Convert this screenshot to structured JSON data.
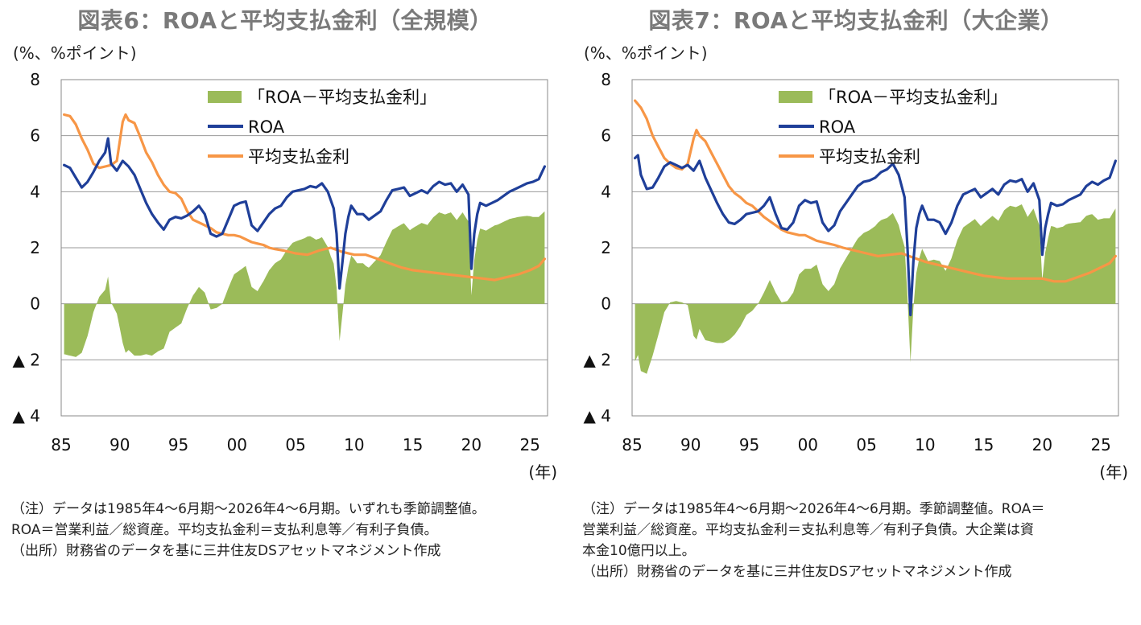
{
  "chart_data": [
    {
      "type": "line",
      "title": "図表6：ROAと平均支払金利（全規模）",
      "unit_label": "(%、%ポイント)",
      "x_unit": "(年)",
      "ylim": [
        -4,
        8
      ],
      "y_ticks": [
        8,
        6,
        4,
        2,
        0,
        -2,
        -4
      ],
      "y_tick_labels": [
        "8",
        "6",
        "4",
        "2",
        "0",
        "▲ 2",
        "▲ 4"
      ],
      "xlim": [
        1985,
        2026.5
      ],
      "x_ticks": [
        1985,
        1990,
        1995,
        2000,
        2005,
        2010,
        2015,
        2020,
        2025
      ],
      "x_tick_labels": [
        "85",
        "90",
        "95",
        "00",
        "05",
        "10",
        "15",
        "20",
        "25"
      ],
      "grid": true,
      "legend": "top-right",
      "colors": {
        "diff": "#9bbb59",
        "roa": "#1f3f99",
        "rate": "#f79646"
      },
      "series": [
        {
          "name": "「ROA－平均支払金利」",
          "kind": "area",
          "derived": "roa-rate"
        },
        {
          "name": "ROA",
          "kind": "line",
          "x": [
            1985.25,
            1985.75,
            1986.25,
            1986.75,
            1987.25,
            1987.75,
            1988.25,
            1988.75,
            1989.0,
            1989.25,
            1989.75,
            1990.25,
            1990.75,
            1991.25,
            1991.75,
            1992.25,
            1992.75,
            1993.25,
            1993.75,
            1994.25,
            1994.75,
            1995.25,
            1995.75,
            1996.25,
            1996.75,
            1997.25,
            1997.75,
            1998.25,
            1998.75,
            1999.25,
            1999.75,
            2000.25,
            2000.75,
            2001.25,
            2001.75,
            2002.25,
            2002.75,
            2003.25,
            2003.75,
            2004.25,
            2004.75,
            2005.25,
            2005.75,
            2006.25,
            2006.75,
            2007.25,
            2007.75,
            2008.25,
            2008.5,
            2008.75,
            2009.0,
            2009.25,
            2009.5,
            2009.75,
            2010.25,
            2010.75,
            2011.25,
            2011.75,
            2012.25,
            2012.75,
            2013.25,
            2013.75,
            2014.25,
            2014.75,
            2015.25,
            2015.75,
            2016.25,
            2016.75,
            2017.25,
            2017.75,
            2018.25,
            2018.75,
            2019.25,
            2019.75,
            2020.0,
            2020.25,
            2020.5,
            2020.75,
            2021.25,
            2021.75,
            2022.25,
            2022.75,
            2023.25,
            2023.75,
            2024.25,
            2024.75,
            2025.25,
            2025.75,
            2026.25
          ],
          "y": [
            4.95,
            4.85,
            4.5,
            4.15,
            4.35,
            4.7,
            5.1,
            5.4,
            5.9,
            5.0,
            4.75,
            5.1,
            4.9,
            4.6,
            4.1,
            3.6,
            3.2,
            2.9,
            2.65,
            3.0,
            3.1,
            3.05,
            3.15,
            3.3,
            3.5,
            3.2,
            2.5,
            2.4,
            2.5,
            3.0,
            3.5,
            3.6,
            3.65,
            2.8,
            2.6,
            2.9,
            3.2,
            3.4,
            3.5,
            3.8,
            4.0,
            4.05,
            4.1,
            4.2,
            4.15,
            4.3,
            4.0,
            3.4,
            2.5,
            0.55,
            1.5,
            2.5,
            3.1,
            3.5,
            3.2,
            3.2,
            3.0,
            3.15,
            3.3,
            3.7,
            4.05,
            4.1,
            4.15,
            3.85,
            3.95,
            4.05,
            3.95,
            4.2,
            4.35,
            4.25,
            4.3,
            4.0,
            4.25,
            3.9,
            1.25,
            2.5,
            3.2,
            3.6,
            3.5,
            3.6,
            3.7,
            3.85,
            4.0,
            4.1,
            4.2,
            4.3,
            4.35,
            4.45,
            4.9
          ]
        },
        {
          "name": "平均支払金利",
          "kind": "line",
          "x": [
            1985.25,
            1985.75,
            1986.25,
            1986.75,
            1987.25,
            1987.75,
            1988.25,
            1988.75,
            1989.25,
            1989.75,
            1990.25,
            1990.5,
            1990.75,
            1991.25,
            1991.75,
            1992.25,
            1992.75,
            1993.25,
            1993.75,
            1994.25,
            1994.75,
            1995.25,
            1995.75,
            1996.25,
            1996.75,
            1997.25,
            1997.75,
            1998.25,
            1998.75,
            1999.25,
            1999.75,
            2000.25,
            2000.75,
            2001.25,
            2001.75,
            2002.25,
            2002.75,
            2003.25,
            2004.0,
            2005.0,
            2006.0,
            2007.0,
            2008.0,
            2009.0,
            2010.0,
            2011.0,
            2012.0,
            2013.0,
            2014.0,
            2015.0,
            2016.0,
            2017.0,
            2018.0,
            2019.0,
            2020.0,
            2021.0,
            2022.0,
            2023.0,
            2024.0,
            2025.0,
            2025.75,
            2026.25
          ],
          "y": [
            6.75,
            6.7,
            6.4,
            5.9,
            5.5,
            5.0,
            4.85,
            4.9,
            4.95,
            5.1,
            6.5,
            6.75,
            6.55,
            6.45,
            5.95,
            5.4,
            5.05,
            4.6,
            4.25,
            4.0,
            3.95,
            3.75,
            3.3,
            3.0,
            2.9,
            2.8,
            2.7,
            2.55,
            2.5,
            2.45,
            2.45,
            2.4,
            2.3,
            2.2,
            2.15,
            2.1,
            2.0,
            1.95,
            1.9,
            1.8,
            1.75,
            1.9,
            2.0,
            1.85,
            1.75,
            1.75,
            1.6,
            1.45,
            1.3,
            1.2,
            1.15,
            1.1,
            1.05,
            1.0,
            0.95,
            0.9,
            0.85,
            0.95,
            1.05,
            1.2,
            1.35,
            1.6
          ]
        }
      ]
    },
    {
      "type": "line",
      "title": "図表7：ROAと平均支払金利（大企業）",
      "unit_label": "(%、%ポイント)",
      "x_unit": "(年)",
      "ylim": [
        -4,
        8
      ],
      "y_ticks": [
        8,
        6,
        4,
        2,
        0,
        -2,
        -4
      ],
      "y_tick_labels": [
        "8",
        "6",
        "4",
        "2",
        "0",
        "▲ 2",
        "▲ 4"
      ],
      "xlim": [
        1985,
        2026.5
      ],
      "x_ticks": [
        1985,
        1990,
        1995,
        2000,
        2005,
        2010,
        2015,
        2020,
        2025
      ],
      "x_tick_labels": [
        "85",
        "90",
        "95",
        "00",
        "05",
        "10",
        "15",
        "20",
        "25"
      ],
      "grid": true,
      "legend": "top-right",
      "colors": {
        "diff": "#9bbb59",
        "roa": "#1f3f99",
        "rate": "#f79646"
      },
      "series": [
        {
          "name": "「ROA－平均支払金利」",
          "kind": "area",
          "derived": "roa-rate"
        },
        {
          "name": "ROA",
          "kind": "line",
          "x": [
            1985.25,
            1985.5,
            1985.75,
            1986.25,
            1986.75,
            1987.25,
            1987.75,
            1988.25,
            1988.75,
            1989.25,
            1989.75,
            1990.25,
            1990.75,
            1991.25,
            1991.75,
            1992.25,
            1992.75,
            1993.25,
            1993.75,
            1994.25,
            1994.75,
            1995.25,
            1995.75,
            1996.25,
            1996.75,
            1997.25,
            1997.75,
            1998.25,
            1998.75,
            1999.25,
            1999.75,
            2000.25,
            2000.75,
            2001.25,
            2001.75,
            2002.25,
            2002.75,
            2003.25,
            2003.75,
            2004.25,
            2004.75,
            2005.25,
            2005.75,
            2006.25,
            2006.75,
            2007.25,
            2007.75,
            2008.25,
            2008.5,
            2008.75,
            2009.0,
            2009.25,
            2009.5,
            2009.75,
            2010.25,
            2010.75,
            2011.25,
            2011.75,
            2012.25,
            2012.75,
            2013.25,
            2013.75,
            2014.25,
            2014.75,
            2015.25,
            2015.75,
            2016.25,
            2016.75,
            2017.25,
            2017.75,
            2018.25,
            2018.75,
            2019.25,
            2019.75,
            2020.0,
            2020.25,
            2020.5,
            2020.75,
            2021.25,
            2021.75,
            2022.25,
            2022.75,
            2023.25,
            2023.75,
            2024.25,
            2024.75,
            2025.25,
            2025.75,
            2026.25
          ],
          "y": [
            5.2,
            5.3,
            4.6,
            4.1,
            4.15,
            4.5,
            4.9,
            5.05,
            4.95,
            4.85,
            4.95,
            4.75,
            5.1,
            4.5,
            4.05,
            3.6,
            3.2,
            2.9,
            2.85,
            3.0,
            3.2,
            3.25,
            3.3,
            3.5,
            3.8,
            3.2,
            2.7,
            2.65,
            2.9,
            3.5,
            3.7,
            3.6,
            3.65,
            2.9,
            2.6,
            2.8,
            3.3,
            3.6,
            3.9,
            4.2,
            4.35,
            4.4,
            4.5,
            4.7,
            4.8,
            5.0,
            4.6,
            3.8,
            2.0,
            -0.4,
            1.5,
            2.7,
            3.2,
            3.5,
            3.0,
            3.0,
            2.9,
            2.5,
            2.9,
            3.5,
            3.9,
            4.0,
            4.1,
            3.8,
            3.95,
            4.1,
            3.9,
            4.25,
            4.4,
            4.35,
            4.45,
            4.0,
            4.3,
            3.7,
            1.75,
            2.7,
            3.2,
            3.6,
            3.5,
            3.55,
            3.7,
            3.8,
            3.9,
            4.2,
            4.35,
            4.25,
            4.4,
            4.5,
            5.1
          ]
        },
        {
          "name": "平均支払金利",
          "kind": "line",
          "x": [
            1985.25,
            1985.75,
            1986.25,
            1986.75,
            1987.25,
            1987.75,
            1988.25,
            1988.75,
            1989.25,
            1989.75,
            1990.25,
            1990.5,
            1990.75,
            1991.25,
            1991.75,
            1992.25,
            1992.75,
            1993.25,
            1993.75,
            1994.25,
            1994.75,
            1995.25,
            1995.75,
            1996.25,
            1996.75,
            1997.25,
            1997.75,
            1998.25,
            1998.75,
            1999.25,
            1999.75,
            2000.25,
            2000.75,
            2001.25,
            2001.75,
            2002.25,
            2003.0,
            2004.0,
            2005.0,
            2006.0,
            2007.0,
            2008.0,
            2009.0,
            2010.0,
            2011.0,
            2012.0,
            2013.0,
            2014.0,
            2015.0,
            2016.0,
            2017.0,
            2018.0,
            2019.0,
            2020.0,
            2021.0,
            2022.0,
            2023.0,
            2024.0,
            2025.0,
            2025.75,
            2026.25
          ],
          "y": [
            7.25,
            7.0,
            6.6,
            6.0,
            5.6,
            5.2,
            5.0,
            4.85,
            4.8,
            5.0,
            5.9,
            6.2,
            6.0,
            5.8,
            5.4,
            5.0,
            4.6,
            4.2,
            3.95,
            3.8,
            3.6,
            3.5,
            3.3,
            3.1,
            2.95,
            2.8,
            2.65,
            2.55,
            2.5,
            2.45,
            2.45,
            2.35,
            2.25,
            2.2,
            2.15,
            2.1,
            2.0,
            1.9,
            1.8,
            1.7,
            1.75,
            1.8,
            1.65,
            1.5,
            1.4,
            1.3,
            1.2,
            1.1,
            1.0,
            0.95,
            0.9,
            0.9,
            0.9,
            0.9,
            0.8,
            0.8,
            0.95,
            1.1,
            1.3,
            1.45,
            1.7
          ]
        }
      ]
    }
  ],
  "notes_left": [
    "（注）データは1985年4～6月期～2026年4～6月期。いずれも季節調整値。",
    "ROA＝営業利益／総資産。平均支払金利＝支払利息等／有利子負債。",
    "（出所）財務省のデータを基に三井住友DSアセットマネジメント作成"
  ],
  "notes_right": [
    "（注）データは1985年4～6月期～2026年4～6月期。季節調整値。ROA＝",
    "営業利益／総資産。平均支払金利＝支払利息等／有利子負債。大企業は資",
    "本金10億円以上。",
    "（出所）財務省のデータを基に三井住友DSアセットマネジメント作成"
  ]
}
